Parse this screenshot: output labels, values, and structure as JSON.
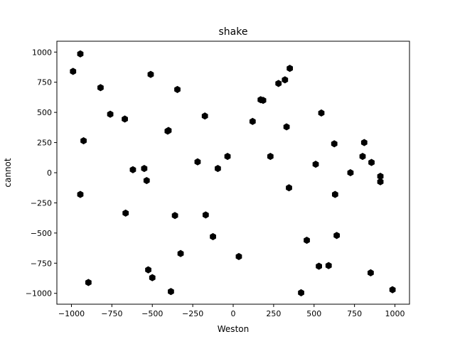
{
  "chart_data": {
    "type": "scatter",
    "title": "shake",
    "xlabel": "Weston",
    "ylabel": "cannot",
    "xlim": [
      -1090,
      1090
    ],
    "ylim": [
      -1090,
      1090
    ],
    "xticks": [
      -1000,
      -750,
      -500,
      -250,
      0,
      250,
      500,
      750,
      1000
    ],
    "yticks": [
      -1000,
      -750,
      -500,
      -250,
      0,
      250,
      500,
      750,
      1000
    ],
    "xtick_labels": [
      "−1000",
      "−750",
      "−500",
      "−250",
      "0",
      "250",
      "500",
      "750",
      "1000"
    ],
    "ytick_labels": [
      "−1000",
      "−750",
      "−500",
      "−250",
      "0",
      "250",
      "500",
      "750",
      "1000"
    ],
    "grid": false,
    "marker": "hexagon",
    "marker_color": "#000000",
    "x": [
      -990,
      -945,
      -820,
      -760,
      -670,
      -510,
      -345,
      -925,
      -945,
      -665,
      -620,
      -550,
      -535,
      -405,
      -400,
      -360,
      -325,
      -220,
      -175,
      -170,
      -125,
      -95,
      -35,
      35,
      120,
      170,
      185,
      230,
      280,
      320,
      330,
      345,
      350,
      420,
      455,
      510,
      530,
      545,
      590,
      625,
      630,
      640,
      725,
      800,
      810,
      850,
      855,
      910,
      910,
      985,
      -525,
      -500,
      -385,
      -895
    ],
    "y": [
      840,
      985,
      705,
      485,
      445,
      815,
      690,
      265,
      -180,
      -335,
      25,
      35,
      -65,
      345,
      350,
      -355,
      -670,
      90,
      470,
      -350,
      -530,
      35,
      135,
      -695,
      425,
      605,
      600,
      135,
      740,
      770,
      380,
      -125,
      865,
      -995,
      -560,
      70,
      -775,
      495,
      -770,
      240,
      -180,
      -520,
      0,
      135,
      250,
      -830,
      85,
      -30,
      -75,
      -970,
      -805,
      -870,
      -985,
      -910
    ]
  }
}
